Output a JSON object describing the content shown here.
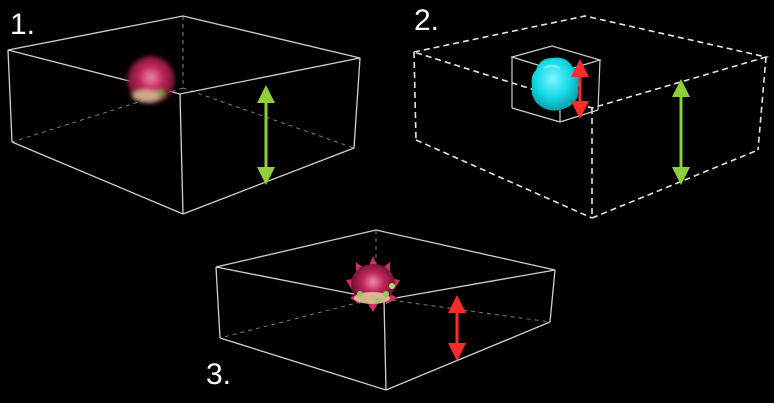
{
  "panels": [
    {
      "label": "1.",
      "object": "flower-blurred",
      "arrow_color": "#8fce3c"
    },
    {
      "label": "2.",
      "object": "cyan-segmentation-blob",
      "arrow_color": "#8fce3c",
      "inner_arrow_color": "#ff2a2a"
    },
    {
      "label": "3.",
      "object": "flower-sharp",
      "arrow_color": "#ff2a2a"
    }
  ],
  "colors": {
    "background": "#000000",
    "box_edges": "#d0d0d0",
    "hidden_edges": "#7a7a7a",
    "green_arrow": "#8fce3c",
    "red_arrow": "#ff2a2a",
    "cyan_object": "#12d9e6",
    "flower_magenta": "#c0245a"
  }
}
